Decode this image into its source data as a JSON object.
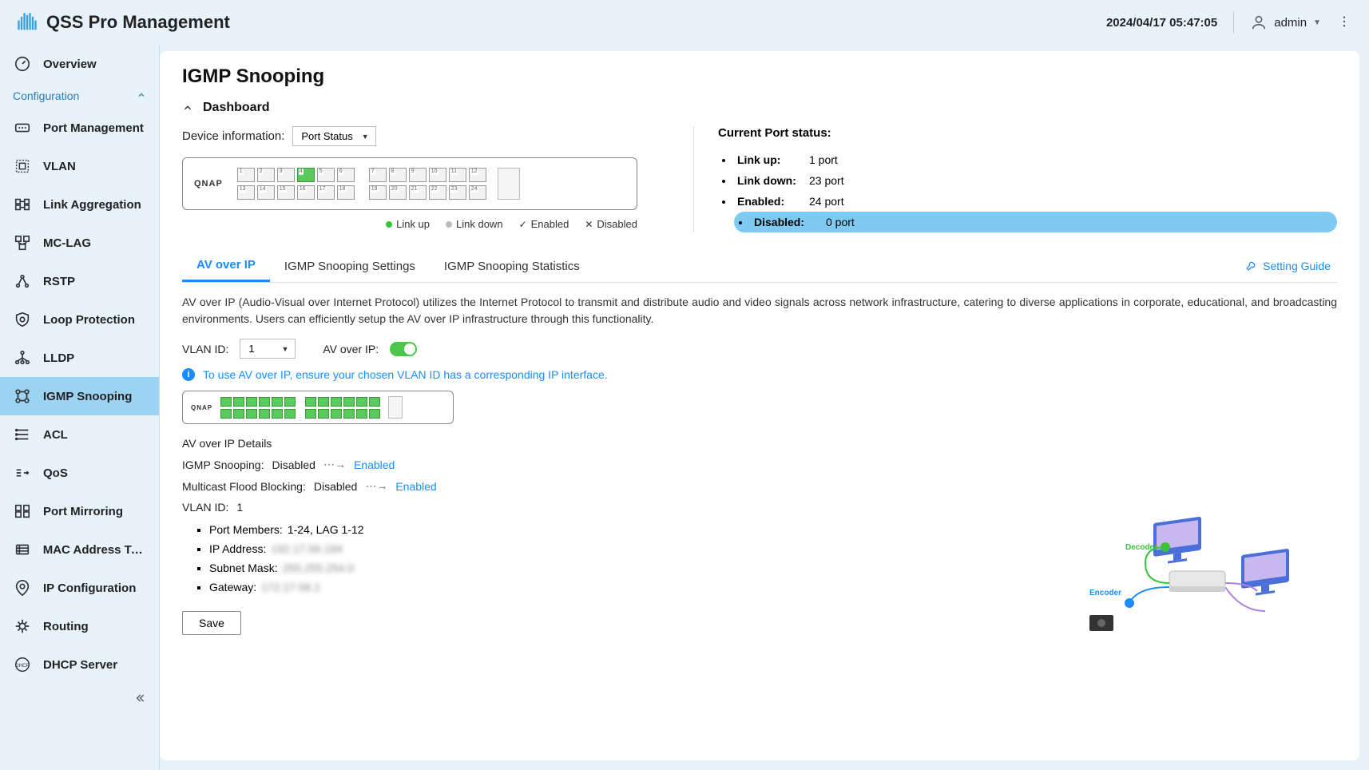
{
  "header": {
    "app_title": "QSS Pro Management",
    "timestamp": "2024/04/17 05:47:05",
    "user_name": "admin"
  },
  "sidebar": {
    "section_label": "Configuration",
    "items": [
      {
        "label": "Overview",
        "icon": "gauge",
        "active": false
      },
      {
        "label": "Port Management",
        "icon": "port",
        "active": false
      },
      {
        "label": "VLAN",
        "icon": "vlan",
        "active": false
      },
      {
        "label": "Link Aggregation",
        "icon": "link-agg",
        "active": false
      },
      {
        "label": "MC-LAG",
        "icon": "mclag",
        "active": false
      },
      {
        "label": "RSTP",
        "icon": "rstp",
        "active": false
      },
      {
        "label": "Loop Protection",
        "icon": "shield",
        "active": false
      },
      {
        "label": "LLDP",
        "icon": "lldp",
        "active": false
      },
      {
        "label": "IGMP Snooping",
        "icon": "igmp",
        "active": true
      },
      {
        "label": "ACL",
        "icon": "acl",
        "active": false
      },
      {
        "label": "QoS",
        "icon": "qos",
        "active": false
      },
      {
        "label": "Port Mirroring",
        "icon": "mirror",
        "active": false
      },
      {
        "label": "MAC Address Ta...",
        "icon": "mac",
        "active": false
      },
      {
        "label": "IP Configuration",
        "icon": "ip",
        "active": false
      },
      {
        "label": "Routing",
        "icon": "routing",
        "active": false
      },
      {
        "label": "DHCP Server",
        "icon": "dhcp",
        "active": false
      }
    ]
  },
  "page": {
    "title": "IGMP Snooping",
    "dashboard_label": "Dashboard",
    "device_info_label": "Device information:",
    "device_info_select": "Port Status",
    "switch_brand": "QNAP",
    "legend": {
      "link_up": "Link up",
      "link_down": "Link down",
      "enabled": "Enabled",
      "disabled": "Disabled"
    },
    "port_status": {
      "title": "Current Port status:",
      "items": [
        {
          "label": "Link up:",
          "value": "1 port",
          "highlight": false
        },
        {
          "label": "Link down:",
          "value": "23 port",
          "highlight": false
        },
        {
          "label": "Enabled:",
          "value": "24 port",
          "highlight": false
        },
        {
          "label": "Disabled:",
          "value": "0 port",
          "highlight": true
        }
      ]
    },
    "tabs": {
      "items": [
        "AV over IP",
        "IGMP Snooping Settings",
        "IGMP Snooping Statistics"
      ],
      "setting_guide": "Setting Guide"
    },
    "av_over_ip": {
      "description": "AV over IP (Audio-Visual over Internet Protocol) utilizes the Internet Protocol to transmit and distribute audio and video signals across network infrastructure, catering to diverse applications in corporate, educational, and broadcasting environments. Users can efficiently setup the AV over IP infrastructure through this functionality.",
      "vlan_id_label": "VLAN ID:",
      "vlan_id_value": "1",
      "av_over_ip_label": "AV over IP:",
      "info_text": "To use AV over IP, ensure your chosen VLAN ID has a corresponding IP interface.",
      "details_title": "AV over IP Details",
      "igmp_snooping_label": "IGMP Snooping:",
      "igmp_snooping_value": "Disabled",
      "multicast_label": "Multicast Flood Blocking:",
      "multicast_value": "Disabled",
      "enabled_link": "Enabled",
      "vlan_detail_label": "VLAN ID:",
      "vlan_detail_value": "1",
      "sub_details": [
        {
          "label": "Port Members:",
          "value": "1-24, LAG 1-12"
        },
        {
          "label": "IP Address:",
          "value": "192.17.56.184",
          "blur": true
        },
        {
          "label": "Subnet Mask:",
          "value": "255.255.254.0",
          "blur": true
        },
        {
          "label": "Gateway:",
          "value": "172.17.56.1",
          "blur": true
        }
      ],
      "save_button": "Save"
    }
  },
  "colors": {
    "bg": "#e8f2fa",
    "active_nav": "#9cd3f2",
    "link_blue": "#1a8cff",
    "port_up": "#5cc95c",
    "highlight_row": "#7ecaf2",
    "toggle_on": "#4ac64a"
  }
}
